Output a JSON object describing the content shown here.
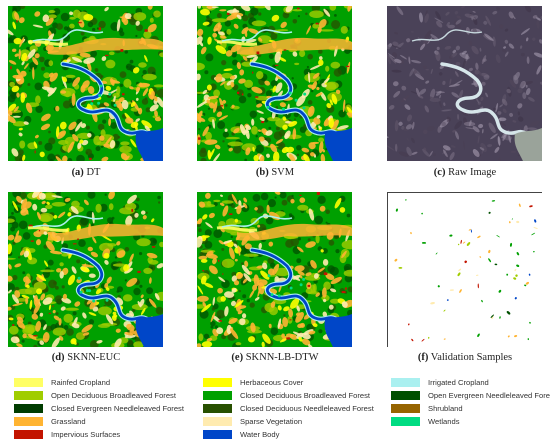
{
  "panels": [
    {
      "id": "a",
      "letter": "(a)",
      "title": "DT",
      "kind": "map"
    },
    {
      "id": "b",
      "letter": "(b)",
      "title": "SVM",
      "kind": "map"
    },
    {
      "id": "c",
      "letter": "(c)",
      "title": "Raw Image",
      "kind": "raw"
    },
    {
      "id": "d",
      "letter": "(d)",
      "title": "SKNN-EUC",
      "kind": "map"
    },
    {
      "id": "e",
      "letter": "(e)",
      "title": "SKNN-LB-DTW",
      "kind": "map"
    },
    {
      "id": "f",
      "letter": "(f)",
      "title": "Validation Samples",
      "kind": "samples"
    }
  ],
  "legend": [
    {
      "label": "Rainfed Cropland",
      "color": "#ffff64"
    },
    {
      "label": "Herbaceous Cover",
      "color": "#ffff00"
    },
    {
      "label": "Irrigated Cropland",
      "color": "#aaf0f0"
    },
    {
      "label": "Open Deciduous Broadleaved Forest",
      "color": "#a0cd00"
    },
    {
      "label": "Closed Deciduous Broadleaved Forest",
      "color": "#00a000"
    },
    {
      "label": "Open Evergreen Needleleaved Forest",
      "color": "#005000"
    },
    {
      "label": "Closed Evergreen Needleleaved Forest",
      "color": "#003c00"
    },
    {
      "label": "Closed Deciduous Needleleaved Forest",
      "color": "#285000"
    },
    {
      "label": "Shrubland",
      "color": "#966400"
    },
    {
      "label": "Grassland",
      "color": "#ffb432"
    },
    {
      "label": "Sparse Vegetation",
      "color": "#ffebaf"
    },
    {
      "label": "Wetlands",
      "color": "#00dc82"
    },
    {
      "label": "Impervious Surfaces",
      "color": "#c31400"
    },
    {
      "label": "Water Body",
      "color": "#0046c8"
    }
  ]
}
